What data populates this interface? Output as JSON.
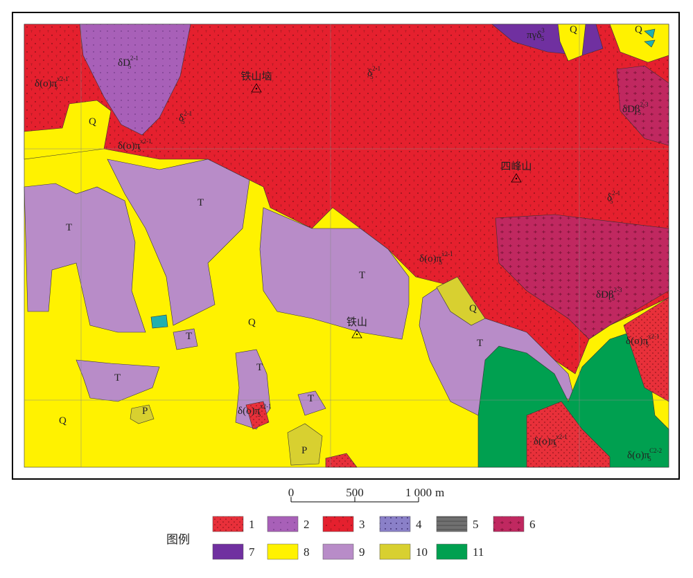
{
  "map": {
    "labels": [
      {
        "text": "δ(o)π",
        "sub": "5",
        "sup": "x2-1"
      },
      {
        "text": "δD",
        "sub": "5",
        "sup": "2-1"
      },
      {
        "text": "δ",
        "sub": "5",
        "sup": "2-1"
      },
      {
        "text": "δ",
        "sub": "5",
        "sup": "2-1"
      },
      {
        "text": "πγδ",
        "sub": "5",
        "sup": "3"
      },
      {
        "text": "Q"
      },
      {
        "text": "Q"
      },
      {
        "text": "δDβ",
        "sub": "5",
        "sup": "2-3"
      },
      {
        "text": "Q"
      },
      {
        "text": "δ(o)π",
        "sub": "5",
        "sup": "x2-1"
      },
      {
        "text": "T"
      },
      {
        "text": "T"
      },
      {
        "text": "δ",
        "sub": "5",
        "sup": "2-1"
      },
      {
        "text": "δ(o)π",
        "sub": "5",
        "sup": "x2-1"
      },
      {
        "text": "T"
      },
      {
        "text": "δDβ",
        "sub": "5",
        "sup": "2-3"
      },
      {
        "text": "Q"
      },
      {
        "text": "Q"
      },
      {
        "text": "T"
      },
      {
        "text": "T"
      },
      {
        "text": "δ(o)π",
        "sub": "5",
        "sup": "x2-1"
      },
      {
        "text": "T"
      },
      {
        "text": "T"
      },
      {
        "text": "P"
      },
      {
        "text": "δ(o)π",
        "sub": "5",
        "sup": "x2-1"
      },
      {
        "text": "T"
      },
      {
        "text": "Q"
      },
      {
        "text": "P"
      },
      {
        "text": "δ(o)π",
        "sub": "5",
        "sup": "x2-1"
      },
      {
        "text": "δ(o)π",
        "sub": "5",
        "sup": "C2-2"
      }
    ],
    "places": [
      "铁山垴",
      "四峰山",
      "铁山"
    ]
  },
  "scale_bar": {
    "ticks": [
      "0",
      "500",
      "1 000"
    ],
    "unit": "m"
  },
  "legend": {
    "title": "图例",
    "items": [
      "1",
      "2",
      "3",
      "4",
      "5",
      "6",
      "7",
      "8",
      "9",
      "10",
      "11"
    ]
  }
}
